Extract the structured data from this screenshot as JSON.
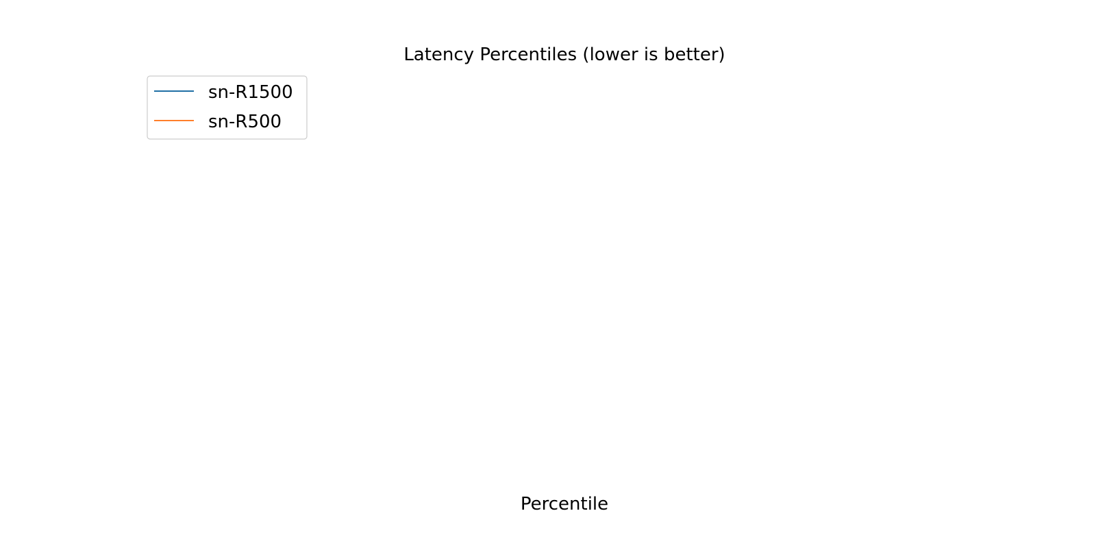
{
  "chart_data": {
    "type": "line",
    "title": "Latency Percentiles (lower is better)",
    "xlabel": "Percentile",
    "ylabel": "",
    "grid": false,
    "legend_position": "upper-left",
    "series": [
      {
        "name": "sn-R1500",
        "color": "#1f6fa5",
        "values": []
      },
      {
        "name": "sn-R500",
        "color": "#ff7f2a",
        "values": []
      }
    ]
  }
}
